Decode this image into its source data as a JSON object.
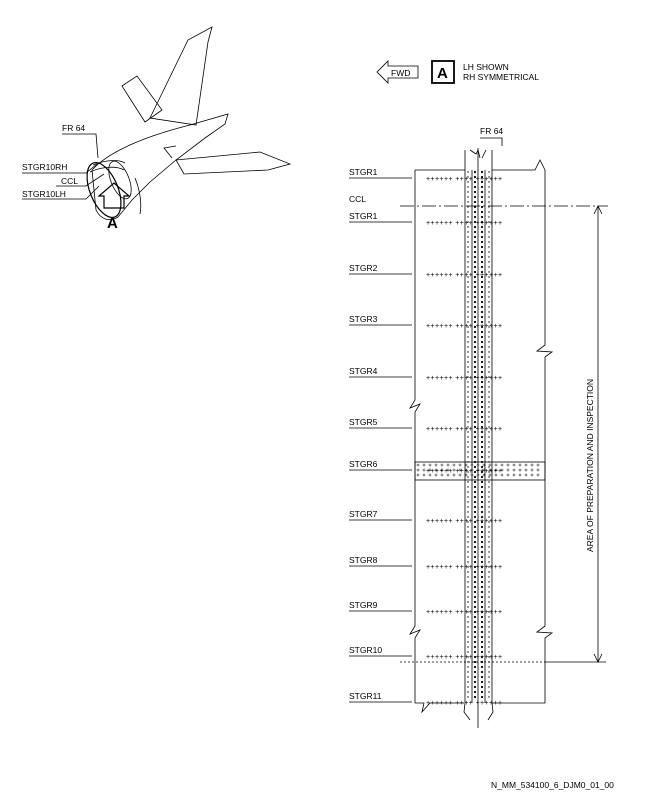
{
  "aircraft_view": {
    "fr_label": "FR 64",
    "stgr10rh_label": "STGR10RH",
    "ccl_label": "CCL",
    "stgr10lh_label": "STGR10LH",
    "view_letter": "A"
  },
  "header": {
    "fwd_label": "FWD",
    "view_letter": "A",
    "note_line1": "LH SHOWN",
    "note_line2": "RH SYMMETRICAL"
  },
  "detail": {
    "fr_label": "FR 64",
    "ccl_label": "CCL",
    "area_label": "AREA OF PREPARATION AND INSPECTION",
    "stringers": [
      "STGR1",
      "STGR1",
      "STGR2",
      "STGR3",
      "STGR4",
      "STGR5",
      "STGR6",
      "STGR7",
      "STGR8",
      "STGR9",
      "STGR10",
      "STGR11"
    ]
  },
  "footer": {
    "drawing_ref": "N_MM_534100_6_DJM0_01_00"
  }
}
